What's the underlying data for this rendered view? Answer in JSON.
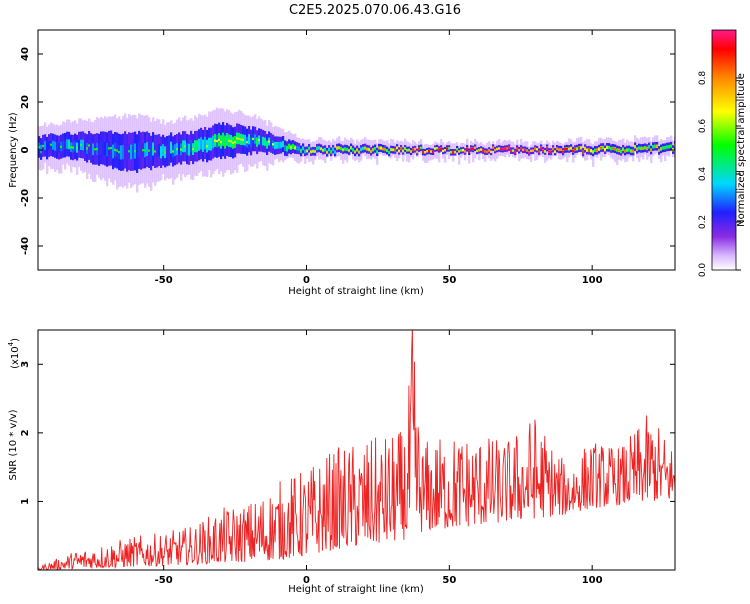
{
  "title": "C2E5.2025.070.06.43.G16",
  "colorbar": {
    "label": "Normalized spectral amplitude",
    "ticks": [
      "0.0",
      "0.2",
      "0.4",
      "0.6",
      "0.8"
    ],
    "tick_values": [
      0.0,
      0.2,
      0.4,
      0.6,
      0.8
    ],
    "range": [
      0,
      1
    ]
  },
  "colors": {
    "snr_line": "#ee2222",
    "axes": "#000000",
    "background": "#ffffff"
  },
  "chart_data": [
    {
      "type": "heatmap",
      "xlabel": "Height of straight line (km)",
      "ylabel": "Frequency (Hz)",
      "xlim": [
        -94,
        129
      ],
      "ylim": [
        -50,
        50
      ],
      "xticks": [
        -50,
        0,
        50,
        100
      ],
      "xtick_labels": [
        "-50",
        "0",
        "50",
        "100"
      ],
      "yticks": [
        -40,
        -20,
        0,
        20,
        40
      ],
      "ytick_labels": [
        "-40",
        "-20",
        "0",
        "20",
        "40"
      ],
      "ridge": {
        "x": [
          -94,
          -80,
          -70,
          -60,
          -50,
          -40,
          -30,
          -20,
          -10,
          0,
          20,
          40,
          60,
          80,
          100,
          129
        ],
        "center_hz": [
          1,
          2,
          0,
          -1,
          0,
          1,
          4,
          4,
          2,
          0,
          0,
          0,
          0,
          0,
          0,
          1
        ],
        "spread_hz": [
          5,
          6,
          8,
          9,
          7,
          7,
          8,
          6,
          4,
          2,
          2,
          1.5,
          1.5,
          1.5,
          2,
          2
        ],
        "peak_amplitude": [
          0.4,
          0.45,
          0.4,
          0.4,
          0.45,
          0.5,
          0.55,
          0.5,
          0.55,
          0.6,
          0.65,
          0.8,
          0.85,
          0.9,
          0.75,
          0.65
        ]
      }
    },
    {
      "type": "line",
      "xlabel": "Height of straight line (km)",
      "ylabel": "SNR (10 * v/v)",
      "yscale_label": "(x10",
      "yscale_exponent": "4",
      "yscale_close": ")",
      "xlim": [
        -94,
        129
      ],
      "ylim": [
        0,
        3.5
      ],
      "xticks": [
        -50,
        0,
        50,
        100
      ],
      "xtick_labels": [
        "-50",
        "0",
        "50",
        "100"
      ],
      "yticks": [
        1,
        2,
        3
      ],
      "ytick_labels": [
        "1",
        "2",
        "3"
      ],
      "series": [
        {
          "x": [
            -94,
            -80,
            -70,
            -60,
            -50,
            -40,
            -30,
            -20,
            -10,
            0,
            10,
            20,
            30,
            35,
            37,
            40,
            50,
            60,
            70,
            80,
            90,
            100,
            110,
            120,
            129
          ],
          "envelope": [
            0.05,
            0.3,
            0.4,
            0.5,
            0.55,
            0.65,
            0.9,
            1.0,
            1.3,
            1.5,
            1.8,
            1.9,
            2.0,
            2.1,
            3.55,
            1.9,
            2.0,
            2.0,
            1.9,
            2.3,
            1.6,
            1.9,
            1.8,
            2.3,
            1.8
          ],
          "floor": [
            0.0,
            0.02,
            0.03,
            0.05,
            0.06,
            0.08,
            0.1,
            0.12,
            0.15,
            0.2,
            0.3,
            0.35,
            0.4,
            0.45,
            0.5,
            0.55,
            0.6,
            0.65,
            0.7,
            0.75,
            0.8,
            0.9,
            0.95,
            1.0,
            1.0
          ]
        }
      ]
    }
  ]
}
